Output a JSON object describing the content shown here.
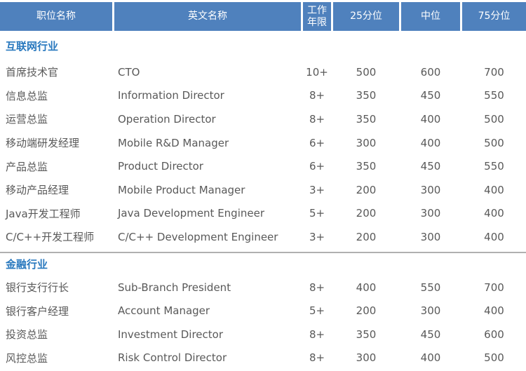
{
  "table": {
    "columns": [
      {
        "label": "职位名称"
      },
      {
        "label": "英文名称"
      },
      {
        "label": "工作年限"
      },
      {
        "label": "25分位"
      },
      {
        "label": "中位"
      },
      {
        "label": "75分位"
      }
    ],
    "sections": [
      {
        "title": "互联网行业",
        "rows": [
          {
            "position": "首席技术官",
            "english": "CTO",
            "years": "10+",
            "p25": "500",
            "median": "600",
            "p75": "700"
          },
          {
            "position": "信息总监",
            "english": "Information Director",
            "years": "8+",
            "p25": "350",
            "median": "450",
            "p75": "550"
          },
          {
            "position": "运营总监",
            "english": "Operation Director",
            "years": "8+",
            "p25": "350",
            "median": "400",
            "p75": "500"
          },
          {
            "position": "移动端研发经理",
            "english": "Mobile R&D Manager",
            "years": "6+",
            "p25": "300",
            "median": "400",
            "p75": "500"
          },
          {
            "position": "产品总监",
            "english": "Product Director",
            "years": "6+",
            "p25": "350",
            "median": "450",
            "p75": "550"
          },
          {
            "position": "移动产品经理",
            "english": "Mobile Product Manager",
            "years": "3+",
            "p25": "200",
            "median": "300",
            "p75": "400"
          },
          {
            "position": "Java开发工程师",
            "english": "Java Development Engineer",
            "years": "5+",
            "p25": "200",
            "median": "300",
            "p75": "400"
          },
          {
            "position": "C/C++开发工程师",
            "english": "C/C++ Development Engineer",
            "years": "3+",
            "p25": "200",
            "median": "300",
            "p75": "400"
          }
        ]
      },
      {
        "title": "金融行业",
        "rows": [
          {
            "position": "银行支行行长",
            "english": "Sub-Branch President",
            "years": "8+",
            "p25": "400",
            "median": "550",
            "p75": "700"
          },
          {
            "position": "银行客户经理",
            "english": "Account Manager",
            "years": "5+",
            "p25": "200",
            "median": "300",
            "p75": "400"
          },
          {
            "position": "投资总监",
            "english": "Investment Director",
            "years": "8+",
            "p25": "350",
            "median": "450",
            "p75": "600"
          },
          {
            "position": "风控总监",
            "english": "Risk Control Director",
            "years": "8+",
            "p25": "300",
            "median": "400",
            "p75": "500"
          }
        ]
      }
    ]
  },
  "colors": {
    "header_bg": "#4f81bd",
    "header_text": "#ffffff",
    "section_title_text": "#2878be",
    "body_text": "#595959",
    "divider": "#b0b0b0"
  }
}
